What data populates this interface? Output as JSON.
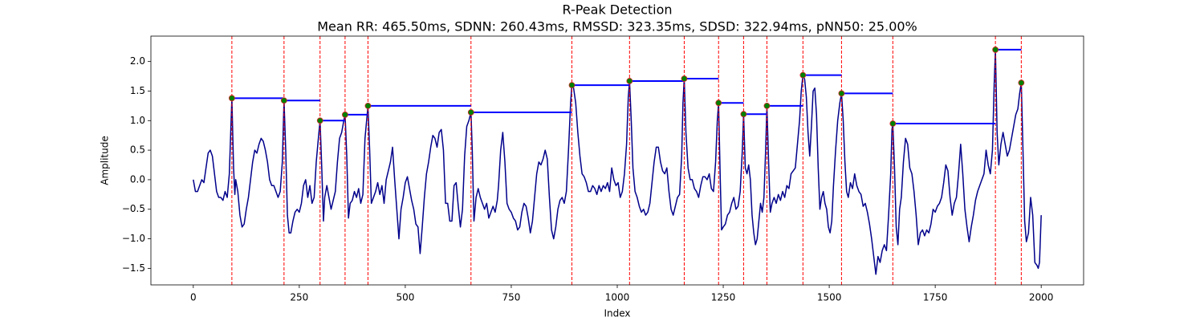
{
  "chart_data": {
    "type": "line",
    "title": "R-Peak Detection",
    "subtitle": "Mean RR: 465.50ms, SDNN: 260.43ms, RMSSD: 323.35ms, SDSD: 322.94ms, pNN50: 25.00%",
    "x_label": "Index",
    "y_label": "Amplitude",
    "xlim": [
      -100,
      2100
    ],
    "ylim": [
      -1.78,
      2.43
    ],
    "xticks": [
      0,
      250,
      500,
      750,
      1000,
      1250,
      1500,
      1750,
      2000
    ],
    "yticks": [
      {
        "value": -1.5,
        "label": "−1.5"
      },
      {
        "value": -1.0,
        "label": "−1.0"
      },
      {
        "value": -0.5,
        "label": "−0.5"
      },
      {
        "value": 0.0,
        "label": "0.0"
      },
      {
        "value": 0.5,
        "label": "0.5"
      },
      {
        "value": 1.0,
        "label": "1.0"
      },
      {
        "value": 1.5,
        "label": "1.5"
      },
      {
        "value": 2.0,
        "label": "2.0"
      }
    ],
    "color": "#00008b",
    "x": [
      0,
      5,
      10,
      15,
      20,
      25,
      30,
      35,
      40,
      45,
      50,
      55,
      60,
      65,
      70,
      75,
      80,
      85,
      91,
      95,
      98,
      100,
      105,
      110,
      115,
      120,
      125,
      130,
      135,
      140,
      145,
      150,
      155,
      160,
      165,
      170,
      175,
      180,
      185,
      190,
      195,
      200,
      205,
      210,
      214,
      218,
      222,
      226,
      230,
      235,
      240,
      245,
      250,
      255,
      260,
      265,
      270,
      275,
      280,
      285,
      290,
      295,
      299,
      303,
      307,
      310,
      315,
      320,
      325,
      330,
      335,
      340,
      345,
      350,
      355,
      358,
      362,
      366,
      370,
      375,
      380,
      385,
      390,
      395,
      400,
      405,
      412,
      416,
      420,
      425,
      430,
      435,
      440,
      445,
      450,
      455,
      460,
      465,
      470,
      475,
      480,
      485,
      490,
      495,
      500,
      505,
      510,
      515,
      520,
      525,
      530,
      535,
      540,
      545,
      550,
      555,
      560,
      565,
      570,
      575,
      580,
      585,
      590,
      595,
      600,
      605,
      610,
      615,
      620,
      625,
      630,
      635,
      640,
      645,
      650,
      655,
      658,
      662,
      667,
      672,
      677,
      682,
      687,
      692,
      697,
      702,
      707,
      712,
      717,
      720,
      725,
      730,
      735,
      740,
      745,
      750,
      755,
      760,
      765,
      770,
      775,
      780,
      785,
      790,
      795,
      800,
      805,
      810,
      815,
      820,
      825,
      830,
      835,
      840,
      845,
      850,
      855,
      860,
      865,
      870,
      875,
      880,
      885,
      890,
      893,
      897,
      902,
      907,
      912,
      917,
      922,
      927,
      932,
      937,
      942,
      947,
      952,
      957,
      962,
      967,
      972,
      977,
      982,
      987,
      992,
      997,
      1002,
      1007,
      1012,
      1017,
      1022,
      1026,
      1029,
      1033,
      1037,
      1042,
      1047,
      1052,
      1057,
      1062,
      1067,
      1072,
      1077,
      1082,
      1087,
      1092,
      1097,
      1102,
      1107,
      1112,
      1117,
      1122,
      1127,
      1132,
      1137,
      1142,
      1147,
      1152,
      1155,
      1158,
      1162,
      1167,
      1172,
      1177,
      1182,
      1187,
      1192,
      1197,
      1202,
      1207,
      1212,
      1217,
      1222,
      1227,
      1232,
      1236,
      1239,
      1243,
      1246,
      1250,
      1255,
      1260,
      1265,
      1270,
      1275,
      1280,
      1285,
      1290,
      1295,
      1298,
      1302,
      1306,
      1310,
      1314,
      1318,
      1322,
      1326,
      1330,
      1334,
      1338,
      1342,
      1346,
      1350,
      1353,
      1357,
      1361,
      1365,
      1370,
      1375,
      1380,
      1385,
      1390,
      1395,
      1400,
      1405,
      1410,
      1415,
      1420,
      1425,
      1430,
      1434,
      1438,
      1442,
      1446,
      1450,
      1454,
      1458,
      1462,
      1466,
      1470,
      1474,
      1478,
      1482,
      1486,
      1490,
      1494,
      1498,
      1502,
      1506,
      1510,
      1515,
      1520,
      1525,
      1529,
      1533,
      1537,
      1541,
      1545,
      1550,
      1555,
      1560,
      1565,
      1570,
      1575,
      1580,
      1585,
      1590,
      1595,
      1600,
      1605,
      1610,
      1615,
      1620,
      1625,
      1630,
      1635,
      1640,
      1645,
      1648,
      1650,
      1654,
      1658,
      1662,
      1666,
      1670,
      1675,
      1680,
      1685,
      1690,
      1695,
      1700,
      1705,
      1710,
      1715,
      1720,
      1725,
      1730,
      1735,
      1740,
      1745,
      1750,
      1755,
      1760,
      1765,
      1770,
      1775,
      1780,
      1785,
      1790,
      1795,
      1800,
      1805,
      1810,
      1815,
      1820,
      1825,
      1830,
      1835,
      1840,
      1845,
      1850,
      1855,
      1860,
      1865,
      1870,
      1875,
      1880,
      1885,
      1889,
      1892,
      1896,
      1900,
      1905,
      1910,
      1915,
      1920,
      1925,
      1930,
      1935,
      1940,
      1945,
      1949,
      1953,
      1957,
      1961,
      1965,
      1970,
      1975,
      1980,
      1985,
      1990,
      1993,
      1996,
      2000
    ],
    "values": [
      0.0,
      -0.2,
      -0.2,
      -0.1,
      0.0,
      -0.05,
      0.2,
      0.45,
      0.5,
      0.4,
      0.1,
      -0.2,
      -0.3,
      -0.3,
      -0.35,
      -0.2,
      -0.3,
      0.1,
      1.38,
      0.2,
      -0.25,
      0.0,
      -0.2,
      -0.6,
      -0.8,
      -0.75,
      -0.5,
      -0.3,
      0.0,
      0.3,
      0.5,
      0.45,
      0.6,
      0.7,
      0.65,
      0.5,
      0.3,
      0.0,
      -0.1,
      -0.1,
      -0.2,
      -0.3,
      -0.2,
      0.3,
      1.34,
      0.5,
      -0.6,
      -0.9,
      -0.9,
      -0.7,
      -0.55,
      -0.5,
      -0.55,
      -0.4,
      -0.1,
      0.0,
      -0.3,
      -0.1,
      -0.4,
      -0.3,
      0.3,
      0.7,
      1.0,
      0.2,
      -0.7,
      -0.3,
      -0.1,
      -0.3,
      -0.5,
      -0.35,
      -0.2,
      0.3,
      0.7,
      0.8,
      1.0,
      1.1,
      0.4,
      -0.65,
      -0.4,
      -0.35,
      -0.2,
      -0.3,
      -0.15,
      -0.4,
      -0.25,
      0.7,
      1.25,
      0.5,
      -0.4,
      -0.3,
      -0.2,
      -0.05,
      -0.25,
      -0.1,
      -0.4,
      0.0,
      0.15,
      0.3,
      0.55,
      0.0,
      -0.5,
      -1.0,
      -0.5,
      -0.3,
      -0.05,
      0.05,
      -0.15,
      -0.35,
      -0.5,
      -0.75,
      -0.8,
      -1.25,
      -0.8,
      -0.3,
      0.1,
      0.3,
      0.55,
      0.75,
      0.7,
      0.55,
      0.8,
      0.85,
      0.5,
      -0.4,
      -0.4,
      -0.7,
      -0.7,
      -0.1,
      -0.05,
      -0.45,
      -0.8,
      -0.5,
      0.4,
      0.9,
      1.0,
      1.14,
      0.5,
      -0.7,
      -0.3,
      -0.15,
      -0.3,
      -0.4,
      -0.5,
      -0.4,
      -0.65,
      -0.55,
      -0.45,
      -0.55,
      -0.35,
      -0.1,
      0.5,
      0.8,
      0.3,
      -0.4,
      -0.5,
      -0.55,
      -0.65,
      -0.7,
      -0.85,
      -0.8,
      -0.55,
      -0.4,
      -0.45,
      -0.65,
      -0.9,
      -0.7,
      -0.3,
      0.1,
      0.3,
      0.25,
      0.35,
      0.5,
      0.35,
      -0.3,
      -0.85,
      -1.0,
      -0.8,
      -0.5,
      -0.35,
      -0.3,
      -0.4,
      -0.2,
      0.5,
      1.3,
      1.6,
      1.55,
      1.3,
      0.8,
      0.4,
      0.1,
      0.05,
      -0.05,
      -0.2,
      -0.2,
      -0.1,
      -0.15,
      -0.25,
      -0.1,
      -0.2,
      -0.1,
      -0.15,
      -0.05,
      -0.2,
      0.2,
      0.0,
      -0.1,
      -0.05,
      -0.3,
      -0.2,
      0.1,
      0.6,
      1.4,
      1.67,
      1.0,
      0.2,
      -0.2,
      -0.3,
      -0.45,
      -0.55,
      -0.5,
      -0.6,
      -0.55,
      -0.4,
      -0.05,
      0.3,
      0.55,
      0.55,
      0.3,
      0.15,
      0.1,
      0.2,
      -0.2,
      -0.5,
      -0.6,
      -0.45,
      -0.3,
      -0.25,
      0.4,
      1.3,
      1.71,
      0.8,
      0.2,
      0.0,
      0.0,
      -0.15,
      -0.2,
      -0.3,
      -0.1,
      0.05,
      0.05,
      0.0,
      0.1,
      -0.15,
      -0.2,
      0.3,
      1.0,
      1.3,
      0.0,
      -0.85,
      -0.8,
      -0.75,
      -0.6,
      -0.55,
      -0.4,
      -0.3,
      -0.5,
      -0.45,
      -0.2,
      0.5,
      1.11,
      0.2,
      0.1,
      0.25,
      0.0,
      -0.6,
      -0.9,
      -1.1,
      -1.0,
      -0.7,
      -0.4,
      -0.55,
      -0.3,
      0.5,
      1.25,
      0.3,
      -0.55,
      -0.4,
      -0.3,
      -0.4,
      -0.25,
      -0.35,
      -0.2,
      -0.3,
      -0.1,
      -0.15,
      0.1,
      0.15,
      0.2,
      0.6,
      1.0,
      1.5,
      1.77,
      1.7,
      1.4,
      0.8,
      0.4,
      0.9,
      1.5,
      1.55,
      1.1,
      0.2,
      -0.5,
      -0.3,
      -0.2,
      -0.4,
      -0.5,
      -0.8,
      -0.9,
      -0.7,
      -0.1,
      0.5,
      1.0,
      1.3,
      1.46,
      1.0,
      0.3,
      -0.2,
      -0.3,
      -0.05,
      -0.15,
      0.1,
      -0.1,
      -0.2,
      -0.25,
      -0.45,
      -0.4,
      -0.55,
      -0.75,
      -1.0,
      -1.3,
      -1.6,
      -1.3,
      -1.4,
      -1.2,
      -1.1,
      -1.2,
      -0.6,
      0.1,
      0.85,
      0.95,
      0.2,
      -0.8,
      -1.1,
      -0.5,
      -0.3,
      0.3,
      0.7,
      0.6,
      0.2,
      0.1,
      -0.2,
      -0.6,
      -1.1,
      -0.9,
      -0.85,
      -0.95,
      -0.85,
      -0.9,
      -0.75,
      -0.5,
      -0.55,
      -0.45,
      -0.4,
      -0.3,
      -0.05,
      0.25,
      0.15,
      -0.3,
      -0.6,
      -0.4,
      -0.3,
      0.1,
      0.6,
      0.1,
      -0.5,
      -0.8,
      -1.05,
      -0.8,
      -0.6,
      -0.35,
      -0.2,
      -0.1,
      0.0,
      0.1,
      0.5,
      0.25,
      0.1,
      0.5,
      1.6,
      2.2,
      0.8,
      0.25,
      0.6,
      0.8,
      0.6,
      0.4,
      0.5,
      0.7,
      0.9,
      1.1,
      1.2,
      1.45,
      1.64,
      0.5,
      -0.7,
      -1.05,
      -0.9,
      -0.3,
      -0.6,
      -1.4,
      -1.45,
      -1.5,
      -1.4,
      -0.6
    ],
    "peaks": {
      "x": [
        91,
        214,
        299,
        358,
        412,
        655,
        893,
        1029,
        1158,
        1239,
        1298,
        1353,
        1438,
        1529,
        1650,
        1892,
        1953
      ],
      "values": [
        1.38,
        1.34,
        1.0,
        1.1,
        1.25,
        1.14,
        1.6,
        1.67,
        1.71,
        1.3,
        1.11,
        1.25,
        1.77,
        1.46,
        0.95,
        2.2,
        1.64
      ],
      "color": "#008000",
      "edge_color": "#d62728",
      "line_color": "#ff0000",
      "interval_color": "#0000ff"
    }
  }
}
